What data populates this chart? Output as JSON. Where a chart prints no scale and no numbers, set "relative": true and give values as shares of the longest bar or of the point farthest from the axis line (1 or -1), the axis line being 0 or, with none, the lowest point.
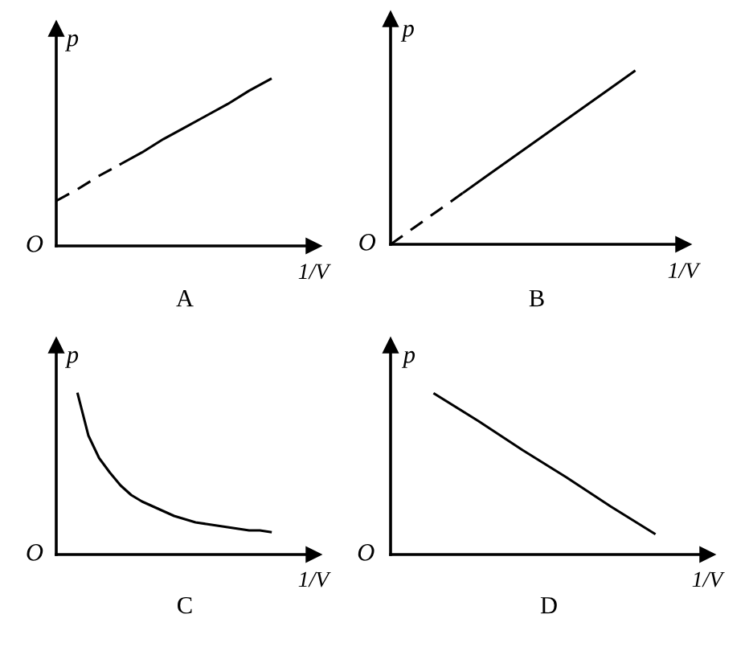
{
  "chart_data": [
    {
      "type": "line",
      "relative": true,
      "title": "A",
      "ylabel": "p",
      "xlabel": "1/V",
      "annotations": [
        "O"
      ],
      "categories": [
        null,
        null,
        null,
        null,
        null,
        null,
        null,
        null,
        null,
        null,
        null
      ],
      "series": [
        {
          "color": "#000000",
          "line_style": "dashed",
          "values": [
            0.27,
            0.34,
            0.42,
            0.49,
            null,
            null,
            null,
            null,
            null,
            null,
            null
          ]
        },
        {
          "color": "#000000",
          "line_style": "solid",
          "values": [
            null,
            null,
            null,
            0.49,
            0.56,
            0.64,
            0.71,
            0.78,
            0.85,
            0.93,
            1
          ]
        }
      ]
    },
    {
      "type": "line",
      "relative": true,
      "title": "B",
      "ylabel": "p",
      "xlabel": "1/V",
      "annotations": [
        "O"
      ],
      "categories": [
        null,
        null,
        null,
        null,
        null,
        null,
        null,
        null,
        null,
        null,
        null
      ],
      "series": [
        {
          "color": "#000000",
          "line_style": "dashed",
          "values": [
            0,
            0.1,
            0.2,
            0.3,
            null,
            null,
            null,
            null,
            null,
            null,
            null
          ]
        },
        {
          "color": "#000000",
          "line_style": "solid",
          "values": [
            null,
            null,
            null,
            0.3,
            0.4,
            0.5,
            0.6,
            0.7,
            0.8,
            0.9,
            1
          ]
        }
      ]
    },
    {
      "type": "line",
      "relative": true,
      "title": "C",
      "ylabel": "p",
      "xlabel": "1/V",
      "annotations": [
        "O"
      ],
      "categories": [
        null,
        null,
        null,
        null,
        null,
        null,
        null,
        null,
        null,
        null,
        null,
        null,
        null,
        null,
        null,
        null,
        null,
        null,
        null,
        null,
        null
      ],
      "series": [
        {
          "color": "#000000",
          "line_style": "solid",
          "values": [
            null,
            null,
            1,
            0.74,
            0.6,
            0.51,
            0.43,
            0.37,
            0.33,
            0.3,
            0.27,
            0.24,
            0.22,
            0.2,
            0.19,
            0.18,
            0.17,
            0.16,
            0.15,
            0.15,
            0.14
          ]
        }
      ]
    },
    {
      "type": "line",
      "relative": true,
      "title": "D",
      "ylabel": "p",
      "xlabel": "1/V",
      "annotations": [
        "O"
      ],
      "categories": [
        null,
        null,
        null,
        null,
        null,
        null,
        null
      ],
      "series": [
        {
          "color": "#000000",
          "line_style": "solid",
          "values": [
            null,
            1,
            0.83,
            0.65,
            0.48,
            0.3,
            0.13
          ]
        }
      ]
    }
  ]
}
